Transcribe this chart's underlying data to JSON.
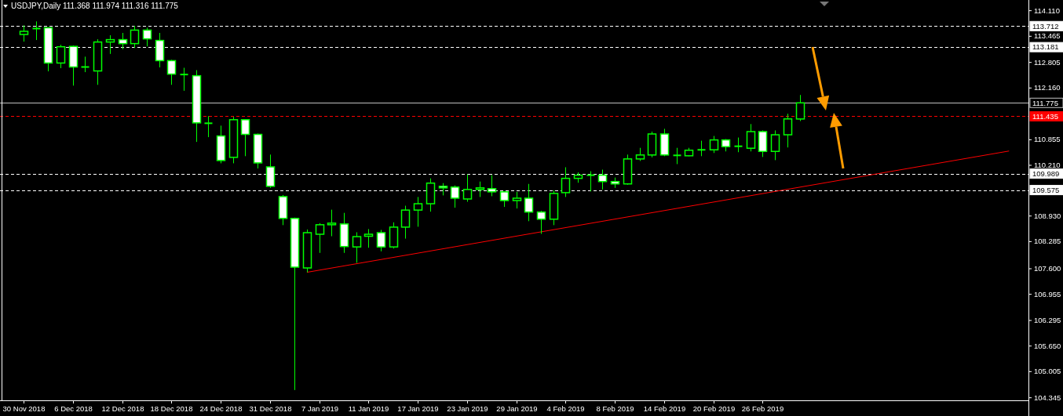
{
  "chart_data": {
    "type": "candlestick",
    "title": "USDJPY,Daily  111.368 111.974 111.316 111.775",
    "categories": [
      "30 Nov 2018",
      null,
      null,
      null,
      "6 Dec 2018",
      null,
      null,
      null,
      "12 Dec 2018",
      null,
      null,
      null,
      "18 Dec 2018",
      null,
      null,
      null,
      "24 Dec 2018",
      null,
      null,
      null,
      "31 Dec 2018",
      null,
      null,
      null,
      "7 Jan 2019",
      null,
      null,
      null,
      "11 Jan 2019",
      null,
      null,
      null,
      "17 Jan 2019",
      null,
      null,
      null,
      "23 Jan 2019",
      null,
      null,
      null,
      "29 Jan 2019",
      null,
      null,
      null,
      "4 Feb 2019",
      null,
      null,
      null,
      "8 Feb 2019",
      null,
      null,
      null,
      "14 Feb 2019",
      null,
      null,
      null,
      "20 Feb 2019",
      null,
      null,
      null,
      "26 Feb 2019",
      null,
      null,
      null,
      null,
      null,
      null,
      null,
      null,
      null,
      null,
      null,
      null,
      null,
      null,
      null,
      null,
      null,
      null,
      null,
      null,
      null
    ],
    "color": "#00ff00",
    "ohlc": [
      [
        113.5,
        113.73,
        113.32,
        113.58
      ],
      [
        113.65,
        113.83,
        113.36,
        113.65
      ],
      [
        113.67,
        113.67,
        112.57,
        112.78
      ],
      [
        112.78,
        113.24,
        112.65,
        113.19
      ],
      [
        113.2,
        113.22,
        112.21,
        112.68
      ],
      [
        112.68,
        112.94,
        112.55,
        112.68
      ],
      [
        112.58,
        113.38,
        112.23,
        113.31
      ],
      [
        113.31,
        113.48,
        113.01,
        113.37
      ],
      [
        113.37,
        113.54,
        113.13,
        113.27
      ],
      [
        113.27,
        113.72,
        113.16,
        113.61
      ],
      [
        113.61,
        113.67,
        113.2,
        113.39
      ],
      [
        113.35,
        113.54,
        112.67,
        112.84
      ],
      [
        112.84,
        112.86,
        112.23,
        112.5
      ],
      [
        112.49,
        112.66,
        112.08,
        112.49
      ],
      [
        112.46,
        112.6,
        110.79,
        111.27
      ],
      [
        111.26,
        111.44,
        110.91,
        111.26
      ],
      [
        110.94,
        111.2,
        110.25,
        110.32
      ],
      [
        110.4,
        111.42,
        110.25,
        111.35
      ],
      [
        111.35,
        111.36,
        110.43,
        110.98
      ],
      [
        110.98,
        111.0,
        110.12,
        110.26
      ],
      [
        110.16,
        110.47,
        109.63,
        109.67
      ],
      [
        109.41,
        109.45,
        108.69,
        108.86
      ],
      [
        108.86,
        108.88,
        104.53,
        107.63
      ],
      [
        107.61,
        108.58,
        107.5,
        108.5
      ],
      [
        108.46,
        108.74,
        107.99,
        108.7
      ],
      [
        108.7,
        109.08,
        108.41,
        108.74
      ],
      [
        108.72,
        109.0,
        107.99,
        108.15
      ],
      [
        108.14,
        108.51,
        107.74,
        108.4
      ],
      [
        108.41,
        108.59,
        108.12,
        108.46
      ],
      [
        108.5,
        108.57,
        108.03,
        108.14
      ],
      [
        108.14,
        108.76,
        108.1,
        108.64
      ],
      [
        108.64,
        109.18,
        108.35,
        109.07
      ],
      [
        109.07,
        109.4,
        108.65,
        109.23
      ],
      [
        109.23,
        109.87,
        109.03,
        109.75
      ],
      [
        109.67,
        109.75,
        109.44,
        109.63
      ],
      [
        109.65,
        109.69,
        109.13,
        109.37
      ],
      [
        109.35,
        109.97,
        109.28,
        109.59
      ],
      [
        109.59,
        109.79,
        109.4,
        109.63
      ],
      [
        109.61,
        109.95,
        109.42,
        109.53
      ],
      [
        109.53,
        109.53,
        109.15,
        109.31
      ],
      [
        109.31,
        109.53,
        109.11,
        109.37
      ],
      [
        109.37,
        109.73,
        108.79,
        109.02
      ],
      [
        109.02,
        109.05,
        108.47,
        108.84
      ],
      [
        108.84,
        109.57,
        108.69,
        109.49
      ],
      [
        109.51,
        110.15,
        109.4,
        109.87
      ],
      [
        109.87,
        110.02,
        109.76,
        109.95
      ],
      [
        109.95,
        110.05,
        109.54,
        109.95
      ],
      [
        109.95,
        110.09,
        109.59,
        109.79
      ],
      [
        109.79,
        109.89,
        109.63,
        109.73
      ],
      [
        109.73,
        110.47,
        109.71,
        110.36
      ],
      [
        110.36,
        110.64,
        110.31,
        110.46
      ],
      [
        110.46,
        111.05,
        110.4,
        110.99
      ],
      [
        110.99,
        111.12,
        110.43,
        110.46
      ],
      [
        110.45,
        110.64,
        110.23,
        110.45
      ],
      [
        110.44,
        110.64,
        110.43,
        110.58
      ],
      [
        110.59,
        110.82,
        110.43,
        110.59
      ],
      [
        110.59,
        110.94,
        110.51,
        110.84
      ],
      [
        110.84,
        110.86,
        110.55,
        110.67
      ],
      [
        110.68,
        110.9,
        110.53,
        110.68
      ],
      [
        110.63,
        111.24,
        110.55,
        111.05
      ],
      [
        111.05,
        111.08,
        110.41,
        110.55
      ],
      [
        110.55,
        111.08,
        110.33,
        110.97
      ],
      [
        110.97,
        111.5,
        110.65,
        111.37
      ],
      [
        111.368,
        111.974,
        111.316,
        111.775
      ],
      null,
      null,
      null,
      null,
      null,
      null,
      null,
      null,
      null,
      null,
      null,
      null,
      null,
      null,
      null,
      null,
      null,
      null
    ],
    "series": [
      {
        "type": "line",
        "color": "#ff0000",
        "values": [
          null,
          null,
          null,
          null,
          null,
          null,
          null,
          null,
          null,
          null,
          null,
          null,
          null,
          null,
          null,
          null,
          null,
          null,
          null,
          null,
          null,
          null,
          null,
          107.5,
          null,
          null,
          null,
          null,
          null,
          null,
          null,
          null,
          null,
          null,
          null,
          null,
          null,
          null,
          null,
          null,
          null,
          null,
          null,
          null,
          null,
          null,
          null,
          null,
          null,
          null,
          null,
          null,
          null,
          null,
          null,
          null,
          null,
          null,
          null,
          null,
          null,
          null,
          null,
          null,
          null,
          null,
          null,
          null,
          null,
          null,
          null,
          null,
          null,
          null,
          null,
          null,
          null,
          null,
          null,
          null,
          110.56,
          null
        ]
      }
    ],
    "ylim": [
      104.27,
      114.37
    ],
    "yticks": [
      {
        "value": 114.11,
        "label": "114.110"
      },
      113.465,
      112.805,
      {
        "value": 112.16,
        "label": "112.160"
      },
      110.855,
      {
        "value": 110.21,
        "label": "110.210"
      },
      {
        "value": 108.93,
        "label": "108.930"
      },
      108.285,
      {
        "value": 107.6,
        "label": "107.600"
      },
      106.955,
      106.295,
      {
        "value": 105.65,
        "label": "105.650"
      },
      105.005,
      104.345
    ],
    "ref_lines": [
      {
        "axis": "y",
        "value": 113.712,
        "label": "113.712",
        "color": "#ffffff",
        "line_style": "dashed"
      },
      {
        "axis": "y",
        "value": 113.181,
        "label": "113.181",
        "color": "#ffffff",
        "line_style": "dashed"
      },
      {
        "axis": "y",
        "value": 111.775,
        "label": "111.775",
        "color": "#c0c0c0",
        "line_style": "solid"
      },
      {
        "axis": "y",
        "value": 111.435,
        "label": "111.435",
        "color": "#ff0000",
        "line_style": "dashed"
      },
      {
        "axis": "y",
        "value": 109.989,
        "label": "109.989",
        "color": "#ffffff",
        "line_style": "dashed"
      },
      {
        "axis": "y",
        "value": 109.575,
        "label": "109.575",
        "color": "#ffffff",
        "line_style": "dashed"
      }
    ],
    "grid": false
  }
}
